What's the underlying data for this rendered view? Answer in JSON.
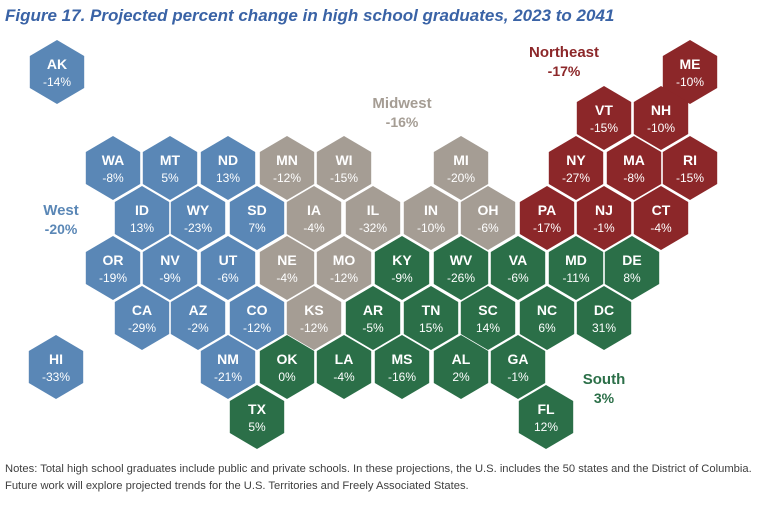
{
  "title": "Figure 17. Projected percent change in high school graduates, 2023 to 2041",
  "colors": {
    "West": "#5a87b6",
    "Midwest": "#a59d94",
    "Northeast": "#8c2729",
    "South": "#2b6f48"
  },
  "regions": [
    {
      "id": "West",
      "name": "West",
      "value": "-20%"
    },
    {
      "id": "Midwest",
      "name": "Midwest",
      "value": "-16%"
    },
    {
      "id": "Northeast",
      "name": "Northeast",
      "value": "-17%"
    },
    {
      "id": "South",
      "name": "South",
      "value": "3%"
    }
  ],
  "states": [
    {
      "abbr": "AK",
      "value": "-14%",
      "region": "West"
    },
    {
      "abbr": "HI",
      "value": "-33%",
      "region": "West"
    },
    {
      "abbr": "WA",
      "value": "-8%",
      "region": "West"
    },
    {
      "abbr": "MT",
      "value": "5%",
      "region": "West"
    },
    {
      "abbr": "ND",
      "value": "13%",
      "region": "West"
    },
    {
      "abbr": "ID",
      "value": "13%",
      "region": "West"
    },
    {
      "abbr": "WY",
      "value": "-23%",
      "region": "West"
    },
    {
      "abbr": "SD",
      "value": "7%",
      "region": "West"
    },
    {
      "abbr": "OR",
      "value": "-19%",
      "region": "West"
    },
    {
      "abbr": "NV",
      "value": "-9%",
      "region": "West"
    },
    {
      "abbr": "UT",
      "value": "-6%",
      "region": "West"
    },
    {
      "abbr": "CA",
      "value": "-29%",
      "region": "West"
    },
    {
      "abbr": "AZ",
      "value": "-2%",
      "region": "West"
    },
    {
      "abbr": "CO",
      "value": "-12%",
      "region": "West"
    },
    {
      "abbr": "NM",
      "value": "-21%",
      "region": "West"
    },
    {
      "abbr": "MN",
      "value": "-12%",
      "region": "Midwest"
    },
    {
      "abbr": "WI",
      "value": "-15%",
      "region": "Midwest"
    },
    {
      "abbr": "MI",
      "value": "-20%",
      "region": "Midwest"
    },
    {
      "abbr": "IA",
      "value": "-4%",
      "region": "Midwest"
    },
    {
      "abbr": "IL",
      "value": "-32%",
      "region": "Midwest"
    },
    {
      "abbr": "IN",
      "value": "-10%",
      "region": "Midwest"
    },
    {
      "abbr": "OH",
      "value": "-6%",
      "region": "Midwest"
    },
    {
      "abbr": "NE",
      "value": "-4%",
      "region": "Midwest"
    },
    {
      "abbr": "MO",
      "value": "-12%",
      "region": "Midwest"
    },
    {
      "abbr": "KS",
      "value": "-12%",
      "region": "Midwest"
    },
    {
      "abbr": "ME",
      "value": "-10%",
      "region": "Northeast"
    },
    {
      "abbr": "VT",
      "value": "-15%",
      "region": "Northeast"
    },
    {
      "abbr": "NH",
      "value": "-10%",
      "region": "Northeast"
    },
    {
      "abbr": "NY",
      "value": "-27%",
      "region": "Northeast"
    },
    {
      "abbr": "MA",
      "value": "-8%",
      "region": "Northeast"
    },
    {
      "abbr": "RI",
      "value": "-15%",
      "region": "Northeast"
    },
    {
      "abbr": "PA",
      "value": "-17%",
      "region": "Northeast"
    },
    {
      "abbr": "NJ",
      "value": "-1%",
      "region": "Northeast"
    },
    {
      "abbr": "CT",
      "value": "-4%",
      "region": "Northeast"
    },
    {
      "abbr": "KY",
      "value": "-9%",
      "region": "South"
    },
    {
      "abbr": "WV",
      "value": "-26%",
      "region": "South"
    },
    {
      "abbr": "VA",
      "value": "-6%",
      "region": "South"
    },
    {
      "abbr": "MD",
      "value": "-11%",
      "region": "South"
    },
    {
      "abbr": "DE",
      "value": "8%",
      "region": "South"
    },
    {
      "abbr": "AR",
      "value": "-5%",
      "region": "South"
    },
    {
      "abbr": "TN",
      "value": "15%",
      "region": "South"
    },
    {
      "abbr": "SC",
      "value": "14%",
      "region": "South"
    },
    {
      "abbr": "NC",
      "value": "6%",
      "region": "South"
    },
    {
      "abbr": "DC",
      "value": "31%",
      "region": "South"
    },
    {
      "abbr": "OK",
      "value": "0%",
      "region": "South"
    },
    {
      "abbr": "LA",
      "value": "-4%",
      "region": "South"
    },
    {
      "abbr": "MS",
      "value": "-16%",
      "region": "South"
    },
    {
      "abbr": "AL",
      "value": "2%",
      "region": "South"
    },
    {
      "abbr": "GA",
      "value": "-1%",
      "region": "South"
    },
    {
      "abbr": "TX",
      "value": "5%",
      "region": "South"
    },
    {
      "abbr": "FL",
      "value": "12%",
      "region": "South"
    }
  ],
  "notes": [
    "Notes: Total high school graduates include public and private schools. In these projections, the U.S. includes the 50 states and the District of Columbia.",
    "Future work will explore projected trends for the U.S. Territories and Freely Associated States."
  ]
}
